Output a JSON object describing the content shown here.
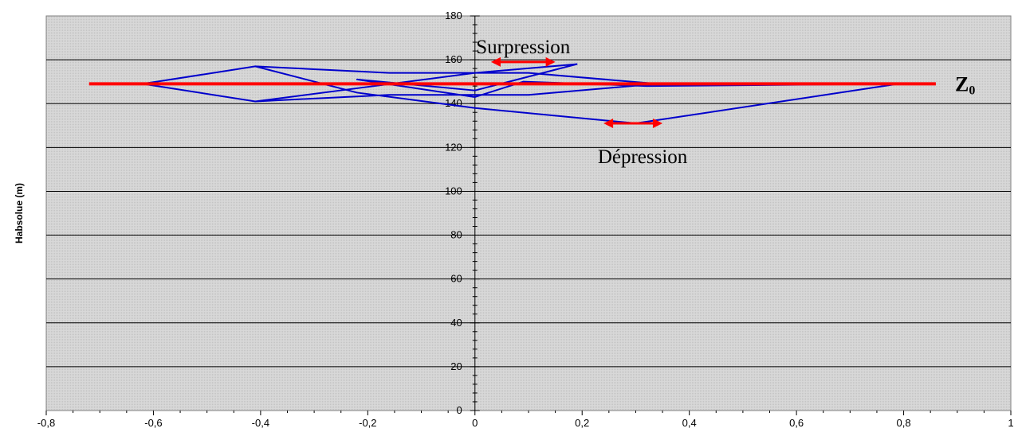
{
  "chart_data": {
    "type": "line",
    "title": "",
    "xlabel": "",
    "ylabel": "Habsolue (m)",
    "xlim": [
      -0.8,
      1.0
    ],
    "ylim": [
      0,
      180
    ],
    "x_ticks": [
      "-0,8",
      "-0,6",
      "-0,4",
      "-0,2",
      "0",
      "0,2",
      "0,4",
      "0,6",
      "0,8",
      "1"
    ],
    "y_ticks": [
      "0",
      "20",
      "40",
      "60",
      "80",
      "100",
      "120",
      "140",
      "160",
      "180"
    ],
    "grid": "horizontal",
    "plot_background": "#d9d9d9",
    "reference_line": {
      "label": "Z",
      "label_subscript": "0",
      "y": 149,
      "x_range": [
        -0.72,
        0.86
      ],
      "color": "#ff0000"
    },
    "series": [
      {
        "color": "#0000cc",
        "x": [
          -0.62,
          -0.41,
          -0.16,
          0.1,
          0.34,
          0.1,
          -0.16,
          -0.41,
          -0.62,
          -0.41,
          -0.22,
          0.0,
          0.19,
          0.0,
          -0.22,
          0.0,
          0.09,
          0.32,
          0.79,
          0.3,
          0.0,
          -0.22,
          -0.41
        ],
        "y": [
          149,
          157,
          154,
          154,
          149,
          144,
          144,
          141,
          149,
          141,
          147,
          154,
          158,
          146,
          151,
          143,
          150,
          148,
          149,
          131,
          138,
          145,
          157
        ]
      }
    ],
    "annotations": [
      {
        "text": "Surpression",
        "type": "double-arrow",
        "x_range": [
          0.03,
          0.15
        ],
        "y": 159,
        "color": "#ff0000"
      },
      {
        "text": "Dépression",
        "type": "double-arrow",
        "x_range": [
          0.24,
          0.35
        ],
        "y": 131,
        "color": "#ff0000"
      }
    ]
  }
}
